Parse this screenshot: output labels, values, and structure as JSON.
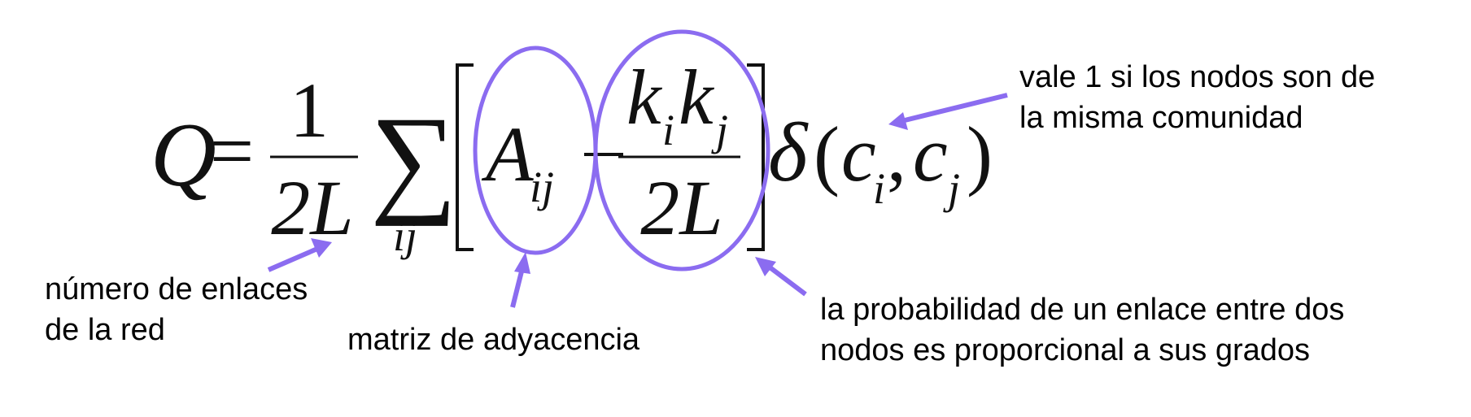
{
  "formula": {
    "Q": "Q",
    "equals": "=",
    "frac1_num": "1",
    "frac1_den": "2L",
    "sum": "∑",
    "sum_sub": "ij",
    "A": "A",
    "A_sub": "ij",
    "minus": "−",
    "k1": "k",
    "k1_sub": "i",
    "k2": "k",
    "k2_sub": "j",
    "frac2_den": "2L",
    "delta": "δ",
    "open_paren": "(",
    "c1": "c",
    "c1_sub": "i",
    "comma": ",",
    "c2": "c",
    "c2_sub": "j",
    "close_paren": ")"
  },
  "annotations": {
    "links": [
      "número de enlaces",
      "de la red"
    ],
    "adjacency": "matriz de adyacencia",
    "probability": [
      "la probabilidad de un enlace entre dos",
      "nodos es proporcional a sus grados"
    ],
    "community": [
      "vale 1 si los nodos son de",
      "la misma comunidad"
    ]
  },
  "colors": {
    "accent": "#8b6cf0",
    "text": "#000000"
  }
}
